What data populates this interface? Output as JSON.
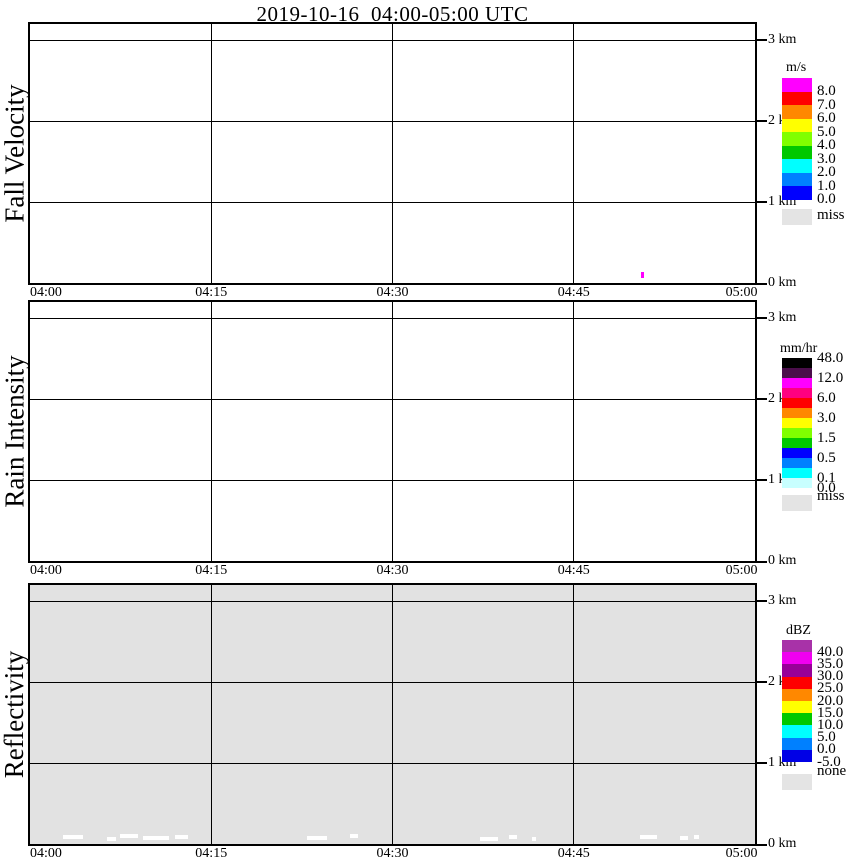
{
  "title": "2019-10-16  04:00-05:00 UTC",
  "x_ticks": [
    "04:00",
    "04:15",
    "04:30",
    "04:45",
    "05:00"
  ],
  "y_ticks": [
    "3 km",
    "2 km",
    "1 km",
    "0 km"
  ],
  "panels": [
    {
      "ylabel": "Fall Velocity",
      "colorbar": {
        "title": "m/s",
        "segments": [
          {
            "color": "#FF00FF"
          },
          {
            "color": "#FF0000"
          },
          {
            "color": "#FF8800"
          },
          {
            "color": "#FFFF00"
          },
          {
            "color": "#80FF00"
          },
          {
            "color": "#00C800"
          },
          {
            "color": "#00FFFF"
          },
          {
            "color": "#0080FF"
          },
          {
            "color": "#0000FF"
          }
        ],
        "labels": [
          "8.0",
          "7.0",
          "6.0",
          "5.0",
          "4.0",
          "3.0",
          "2.0",
          "1.0",
          "0.0"
        ],
        "missing_label": "miss",
        "missing_color": "#E4E4E4"
      },
      "marks": [
        {
          "color": "#FF00FF",
          "time": "04:51",
          "height_km": 0.05
        }
      ]
    },
    {
      "ylabel": "Rain Intensity",
      "colorbar": {
        "title": "mm/hr",
        "segments": [
          {
            "color": "#000000"
          },
          {
            "color": "#4B0E4B"
          },
          {
            "color": "#FF00FF"
          },
          {
            "color": "#FF0080"
          },
          {
            "color": "#FF0000"
          },
          {
            "color": "#FF8800"
          },
          {
            "color": "#FFFF00"
          },
          {
            "color": "#80FF00"
          },
          {
            "color": "#00C800"
          },
          {
            "color": "#0000FF"
          },
          {
            "color": "#0080FF"
          },
          {
            "color": "#00FFFF"
          },
          {
            "color": "#C8FFFF"
          }
        ],
        "labels": [
          "48.0",
          "12.0",
          "6.0",
          "3.0",
          "1.5",
          "0.5",
          "0.1",
          "0.0"
        ],
        "missing_label": "miss",
        "missing_color": "#E4E4E4"
      },
      "marks": []
    },
    {
      "ylabel": "Reflectivity",
      "colorbar": {
        "title": "dBZ",
        "segments": [
          {
            "color": "#A832A8"
          },
          {
            "color": "#F000F0"
          },
          {
            "color": "#980098"
          },
          {
            "color": "#FF0000"
          },
          {
            "color": "#FF8800"
          },
          {
            "color": "#FFFF00"
          },
          {
            "color": "#00C800"
          },
          {
            "color": "#00FFFF"
          },
          {
            "color": "#0080FF"
          },
          {
            "color": "#0000E6"
          }
        ],
        "labels": [
          "40.0",
          "35.0",
          "30.0",
          "25.0",
          "20.0",
          "15.0",
          "10.0",
          "5.0",
          "0.0",
          "-5.0"
        ],
        "missing_label": "none",
        "missing_color": "#E4E4E4"
      },
      "background": "#E2E2E2",
      "specks": [
        {
          "color": "#FFFFFF"
        },
        {
          "color": "#FFFFFF"
        },
        {
          "color": "#FFFFFF"
        },
        {
          "color": "#FFFFFF"
        },
        {
          "color": "#FFFFFF"
        },
        {
          "color": "#FFFFFF"
        },
        {
          "color": "#FFFFFF"
        },
        {
          "color": "#FFFFFF"
        },
        {
          "color": "#FFFFFF"
        },
        {
          "color": "#FFFFFF"
        },
        {
          "color": "#FFFFFF"
        },
        {
          "color": "#FFFFFF"
        },
        {
          "color": "#FFFFFF"
        }
      ]
    }
  ],
  "chart_data": [
    {
      "type": "heatmap",
      "title": "Fall Velocity",
      "suptitle": "2019-10-16  04:00-05:00 UTC",
      "x_range": [
        "04:00",
        "05:00"
      ],
      "x_ticks": [
        "04:00",
        "04:15",
        "04:30",
        "04:45",
        "05:00"
      ],
      "y_range_km": [
        0,
        3.2
      ],
      "y_ticks_km": [
        0,
        1,
        2,
        3
      ],
      "units": "m/s",
      "colorbar_levels": [
        0.0,
        1.0,
        2.0,
        3.0,
        4.0,
        5.0,
        6.0,
        7.0,
        8.0
      ],
      "colorbar_colors_top_to_bottom": [
        "#FF00FF",
        "#FF0000",
        "#FF8800",
        "#FFFF00",
        "#80FF00",
        "#00C800",
        "#00FFFF",
        "#0080FF",
        "#0000FF"
      ],
      "missing_value_label": "miss",
      "grid": true,
      "data_points": [
        {
          "time": "04:51",
          "height_km": 0.05,
          "value": "> 8.0 m/s (magenta speck)"
        }
      ],
      "note": "panel otherwise empty (white, no echo)"
    },
    {
      "type": "heatmap",
      "title": "Rain Intensity",
      "x_range": [
        "04:00",
        "05:00"
      ],
      "x_ticks": [
        "04:00",
        "04:15",
        "04:30",
        "04:45",
        "05:00"
      ],
      "y_range_km": [
        0,
        3.2
      ],
      "y_ticks_km": [
        0,
        1,
        2,
        3
      ],
      "units": "mm/hr",
      "colorbar_levels": [
        0.0,
        0.1,
        0.5,
        1.5,
        3.0,
        6.0,
        12.0,
        48.0
      ],
      "colorbar_colors_top_to_bottom": [
        "#000000",
        "#4B0E4B",
        "#FF00FF",
        "#FF0080",
        "#FF0000",
        "#FF8800",
        "#FFFF00",
        "#80FF00",
        "#00C800",
        "#0000FF",
        "#0080FF",
        "#00FFFF",
        "#C8FFFF"
      ],
      "missing_value_label": "miss",
      "grid": true,
      "data_points": [],
      "note": "panel empty (white, no rain detected)"
    },
    {
      "type": "heatmap",
      "title": "Reflectivity",
      "x_range": [
        "04:00",
        "05:00"
      ],
      "x_ticks": [
        "04:00",
        "04:15",
        "04:30",
        "04:45",
        "05:00"
      ],
      "y_range_km": [
        0,
        3.2
      ],
      "y_ticks_km": [
        0,
        1,
        2,
        3
      ],
      "units": "dBZ",
      "colorbar_levels": [
        -5.0,
        0.0,
        5.0,
        10.0,
        15.0,
        20.0,
        25.0,
        30.0,
        35.0,
        40.0
      ],
      "colorbar_colors_top_to_bottom": [
        "#A832A8",
        "#F000F0",
        "#980098",
        "#FF0000",
        "#FF8800",
        "#FFFF00",
        "#00C800",
        "#00FFFF",
        "#0080FF",
        "#0000E6"
      ],
      "missing_value_label": "none",
      "grid": true,
      "data_points": [],
      "note": "entire panel gray ('none'/missing); scattered white specks along bottom edge below ~0.1 km"
    }
  ]
}
